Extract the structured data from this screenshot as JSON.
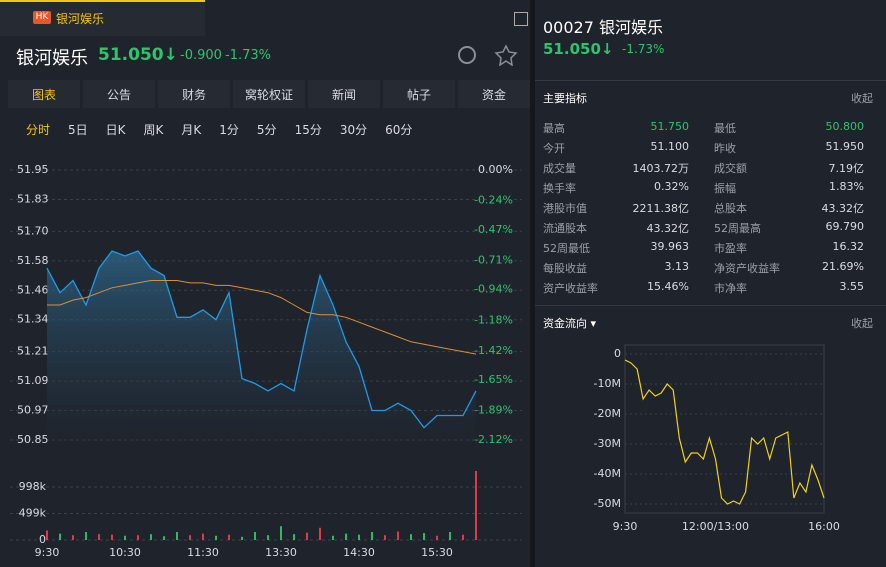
{
  "tab": {
    "badge": "HK",
    "title": "银河娱乐"
  },
  "quote": {
    "name": "银河娱乐",
    "price": "51.050↓",
    "change": "-0.900",
    "change_pct": "-1.73%",
    "title": "00027 银河娱乐"
  },
  "tabs": [
    "图表",
    "公告",
    "财务",
    "窝轮权证",
    "新闻",
    "帖子",
    "资金"
  ],
  "periods": [
    "分时",
    "5日",
    "日K",
    "周K",
    "月K",
    "1分",
    "5分",
    "15分",
    "30分",
    "60分"
  ],
  "stats": {
    "title": "主要指标",
    "collapse": "收起",
    "rows": [
      [
        "最高",
        "51.750",
        "最低",
        "50.800"
      ],
      [
        "今开",
        "51.100",
        "昨收",
        "51.950"
      ],
      [
        "成交量",
        "1403.72万",
        "成交额",
        "7.19亿"
      ],
      [
        "换手率",
        "0.32%",
        "振幅",
        "1.83%"
      ],
      [
        "港股市值",
        "2211.38亿",
        "总股本",
        "43.32亿"
      ],
      [
        "流通股本",
        "43.32亿",
        "52周最高",
        "69.790"
      ],
      [
        "52周最低",
        "39.963",
        "市盈率",
        "16.32"
      ],
      [
        "每股收益",
        "3.13",
        "净资产收益率",
        "21.69%"
      ],
      [
        "资产收益率",
        "15.46%",
        "市净率",
        "3.55"
      ]
    ]
  },
  "flow": {
    "title": "资金流向 ▾",
    "collapse": "收起"
  },
  "chart_data": [
    {
      "type": "line",
      "ylim": [
        50.85,
        51.95
      ],
      "yticks": [
        51.95,
        51.83,
        {
          "value": 51.7,
          "label": "51.70"
        },
        51.58,
        51.46,
        51.34,
        51.21,
        51.09,
        50.97,
        50.85
      ],
      "y2lim": [
        -2.12,
        0
      ],
      "y2ticks": [
        {
          "value": 0,
          "label": "0.00%"
        },
        {
          "value": -0.24,
          "label": "-0.24%"
        },
        {
          "value": -0.47,
          "label": "-0.47%"
        },
        {
          "value": -0.71,
          "label": "-0.71%"
        },
        {
          "value": -0.94,
          "label": "-0.94%"
        },
        {
          "value": -1.18,
          "label": "-1.18%"
        },
        {
          "value": -1.42,
          "label": "-1.42%"
        },
        {
          "value": -1.65,
          "label": "-1.65%"
        },
        {
          "value": -1.89,
          "label": "-1.89%"
        },
        {
          "value": -2.12,
          "label": "-2.12%"
        }
      ],
      "series": [
        {
          "color": "#1e9be8",
          "values": [
            51.55,
            51.45,
            51.5,
            51.4,
            51.55,
            51.62,
            51.6,
            51.62,
            51.55,
            51.52,
            51.35,
            51.35,
            51.38,
            51.34,
            51.45,
            51.1,
            51.08,
            51.05,
            51.08,
            51.05,
            51.3,
            51.52,
            51.4,
            51.25,
            51.15,
            50.97,
            50.97,
            51.0,
            50.97,
            50.9,
            50.95,
            50.95,
            50.95,
            51.05
          ]
        },
        {
          "color": "#d9903a",
          "values": [
            51.4,
            51.4,
            51.42,
            51.43,
            51.45,
            51.47,
            51.48,
            51.49,
            51.5,
            51.5,
            51.5,
            51.49,
            51.49,
            51.48,
            51.48,
            51.47,
            51.46,
            51.45,
            51.43,
            51.4,
            51.37,
            51.36,
            51.36,
            51.35,
            51.33,
            51.31,
            51.29,
            51.27,
            51.25,
            51.24,
            51.23,
            51.22,
            51.21,
            51.2
          ]
        }
      ]
    },
    {
      "type": "bar",
      "categories": [
        "9:30",
        null,
        null,
        null,
        null,
        null,
        "10:30",
        null,
        null,
        null,
        null,
        null,
        "11:30",
        null,
        null,
        null,
        null,
        null,
        "13:30",
        null,
        null,
        null,
        null,
        null,
        "14:30",
        null,
        null,
        null,
        null,
        null,
        "15:30",
        null,
        null,
        null
      ],
      "values": [
        180000,
        120000,
        90000,
        150000,
        110000,
        100000,
        80000,
        90000,
        110000,
        70000,
        150000,
        90000,
        120000,
        80000,
        100000,
        60000,
        150000,
        90000,
        260000,
        110000,
        140000,
        230000,
        80000,
        120000,
        100000,
        150000,
        90000,
        160000,
        110000,
        130000,
        80000,
        150000,
        100000,
        1300000
      ],
      "colors": [
        "#e0394b",
        "#2fb964",
        "#e0394b",
        "#2fb964",
        "#e0394b",
        "#e0394b",
        "#2fb964",
        "#e0394b",
        "#2fb964",
        "#2fb964",
        "#2fb964",
        "#e0394b",
        "#e0394b",
        "#2fb964",
        "#e0394b",
        "#2fb964",
        "#2fb964",
        "#2fb964",
        "#2fb964",
        "#2fb964",
        "#e0394b",
        "#e0394b",
        "#2fb964",
        "#2fb964",
        "#2fb964",
        "#2fb964",
        "#e0394b",
        "#e0394b",
        "#2fb964",
        "#2fb964",
        "#e0394b",
        "#2fb964",
        "#e0394b",
        "#e0394b"
      ],
      "ylim": [
        0,
        1450000
      ],
      "yticks": [
        0,
        {
          "value": 499000,
          "label": "499k"
        },
        {
          "value": 998000,
          "label": "998k"
        }
      ]
    },
    {
      "type": "line",
      "categories": [
        "9:30",
        null,
        null,
        null,
        null,
        null,
        null,
        null,
        null,
        null,
        null,
        null,
        null,
        null,
        null,
        "12:00/13:00",
        null,
        null,
        null,
        null,
        null,
        null,
        null,
        null,
        null,
        null,
        null,
        null,
        null,
        null,
        null,
        null,
        null,
        "16:00"
      ],
      "values": [
        -2000000,
        -3000000,
        -5000000,
        -15000000,
        -12000000,
        -14000000,
        -13000000,
        -10000000,
        -12000000,
        -28000000,
        -36000000,
        -33000000,
        -33000000,
        -35000000,
        -28000000,
        -35000000,
        -48000000,
        -50000000,
        -49000000,
        -50000000,
        -46000000,
        -28000000,
        -30000000,
        -28000000,
        -35000000,
        -28000000,
        -27000000,
        -26000000,
        -48000000,
        -43000000,
        -46000000,
        -37000000,
        -42000000,
        -48000000
      ],
      "color": "#f0d020",
      "ylim": [
        -53000000,
        3000000
      ],
      "yticks": [
        0,
        {
          "value": -10000000,
          "label": "-10M"
        },
        {
          "value": -20000000,
          "label": "-20M"
        },
        {
          "value": -30000000,
          "label": "-30M"
        },
        {
          "value": -40000000,
          "label": "-40M"
        },
        {
          "value": -50000000,
          "label": "-50M"
        }
      ]
    }
  ]
}
